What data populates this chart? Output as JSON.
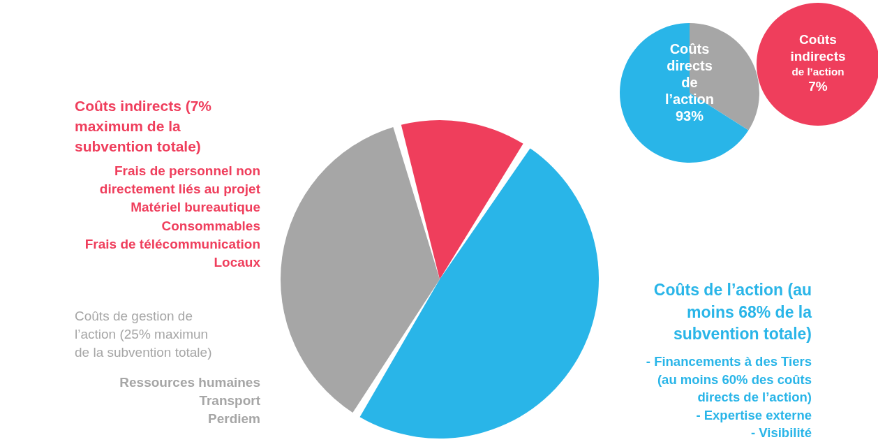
{
  "chart_data": [
    {
      "type": "pie",
      "categories": [
        null,
        null,
        null
      ],
      "values": [
        13,
        50,
        37
      ],
      "colors": [
        "#ef3e5c",
        "#29b5e8",
        "#a6a6a6"
      ],
      "annotations": [
        "Coûts indirects (7%\nmaximum de la\nsubvention totale)",
        "Frais de personnel non\ndirectement liés au projet\nMatériel bureautique\nConsommables\nFrais de télécommunication\nLocaux",
        "Coûts de gestion de\nl’action (25% maximun\nde la subvention totale)",
        "Ressources humaines\nTransport\nPerdiem",
        "Coûts de l’action (au\nmoins 68% de la\nsubvention totale)",
        "- Financements à des Tiers\n(au moins 60% des coûts\ndirects de l’action)\n- Expertise externe\n- Visibilité"
      ]
    },
    {
      "type": "pie",
      "categories": [
        null,
        null
      ],
      "values": [
        34,
        66
      ],
      "colors": [
        "#a6a6a6",
        "#29b5e8"
      ],
      "annotations": [
        "Coûts\ndirects\nde\nl’action\n93%"
      ]
    },
    {
      "type": "pie",
      "categories": [
        null
      ],
      "values": [
        100
      ],
      "colors": [
        "#ef3e5c"
      ],
      "annotations": [
        "Coûts\nindirects\nde l’action\n7%"
      ]
    }
  ]
}
